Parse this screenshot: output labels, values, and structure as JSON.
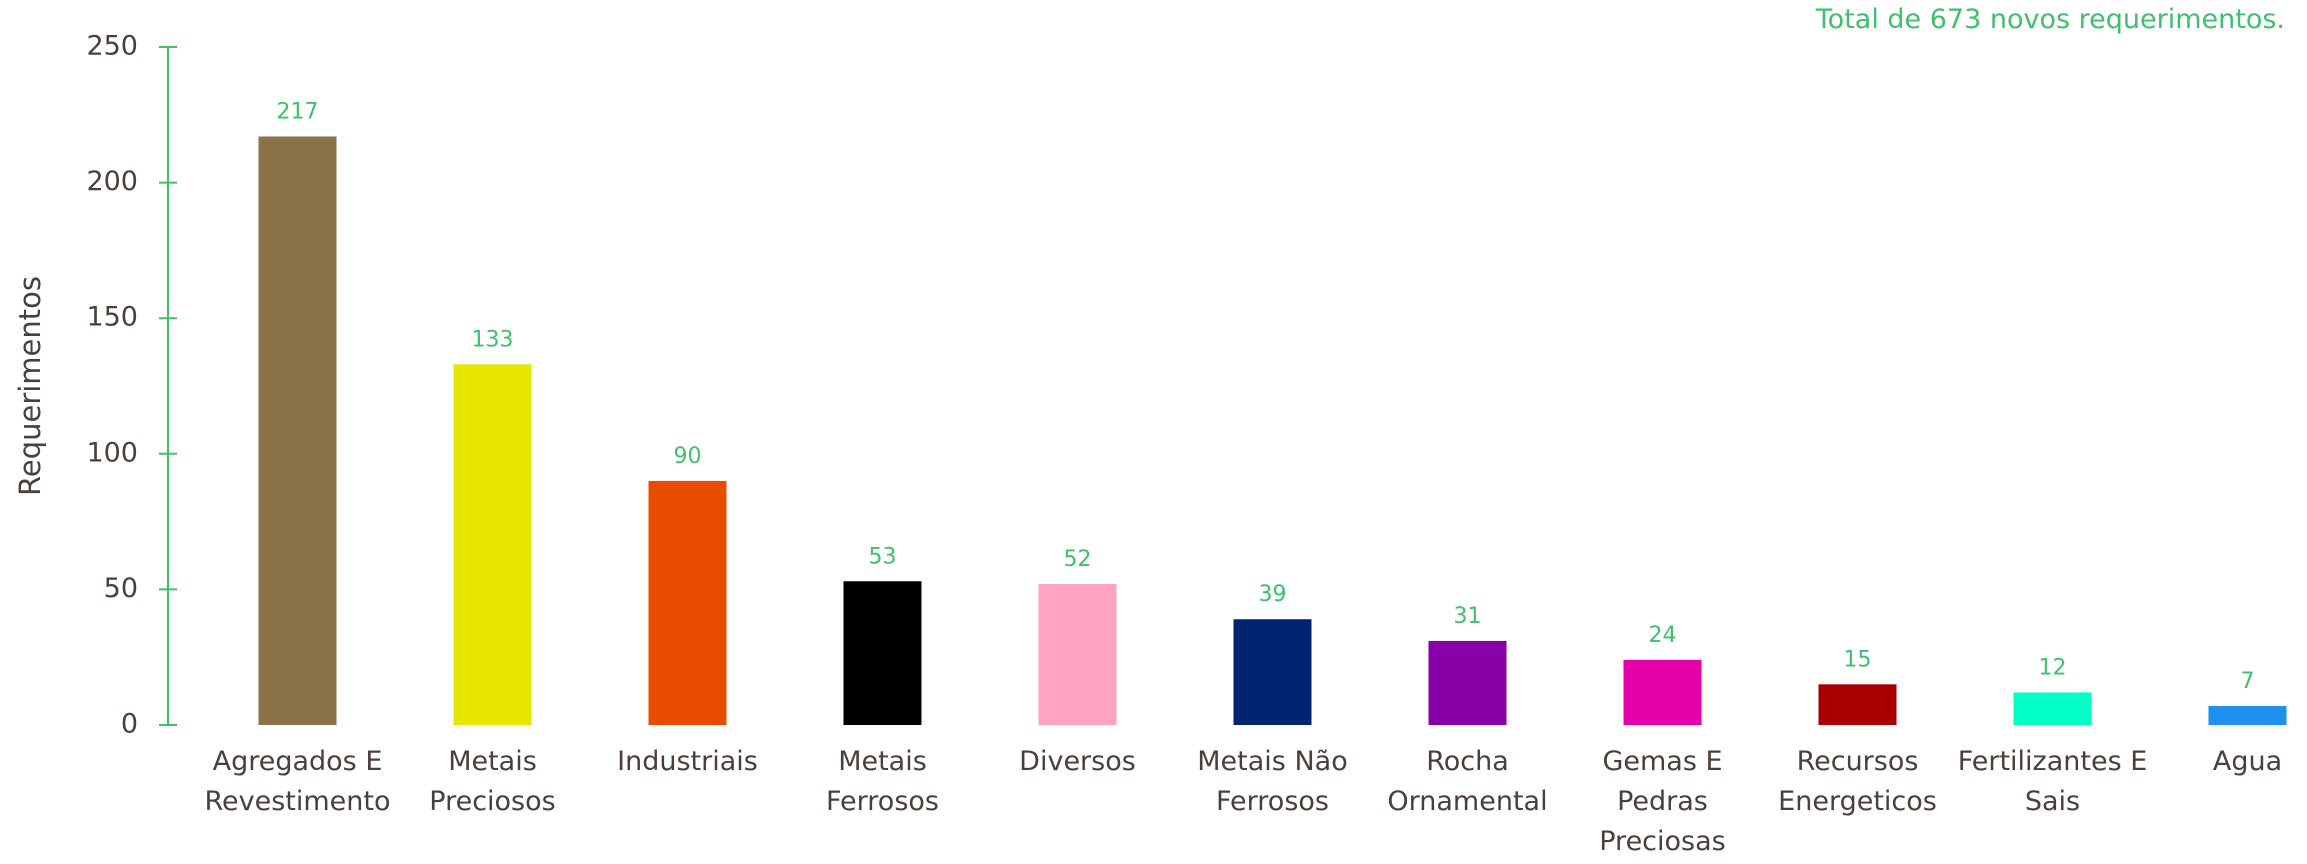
{
  "note": "Total de 673 novos requerimentos.",
  "chart_data": {
    "type": "bar",
    "title": "",
    "xlabel": "",
    "ylabel": "Requerimentos",
    "ylim": [
      0,
      250
    ],
    "yticks": [
      0,
      50,
      100,
      150,
      200,
      250
    ],
    "grid": false,
    "categories": [
      "Agregados E Revestimento",
      "Metais Preciosos",
      "Industriais",
      "Metais Ferrosos",
      "Diversos",
      "Metais Não Ferrosos",
      "Rocha Ornamental",
      "Gemas E Pedras Preciosas",
      "Recursos Energeticos",
      "Fertilizantes E Sais",
      "Agua"
    ],
    "category_label_lines": [
      [
        "Agregados E",
        "Revestimento"
      ],
      [
        "Metais",
        "Preciosos"
      ],
      [
        "Industriais"
      ],
      [
        "Metais",
        "Ferrosos"
      ],
      [
        "Diversos"
      ],
      [
        "Metais Não",
        "Ferrosos"
      ],
      [
        "Rocha",
        "Ornamental"
      ],
      [
        "Gemas E",
        "Pedras",
        "Preciosas"
      ],
      [
        "Recursos",
        "Energeticos"
      ],
      [
        "Fertilizantes E",
        "Sais"
      ],
      [
        "Agua"
      ]
    ],
    "values": [
      217,
      133,
      90,
      53,
      52,
      39,
      31,
      24,
      15,
      12,
      7
    ],
    "bar_colors": [
      "#8b7247",
      "#e6e600",
      "#e84c00",
      "#000000",
      "#ffa3c0",
      "#002471",
      "#8700a8",
      "#e600a9",
      "#a80000",
      "#00ffc4",
      "#1f8ff0"
    ],
    "axis_color": "#3fbf6f",
    "data_label_color": "#3fbf6f",
    "text_color": "#4a3f3a"
  }
}
